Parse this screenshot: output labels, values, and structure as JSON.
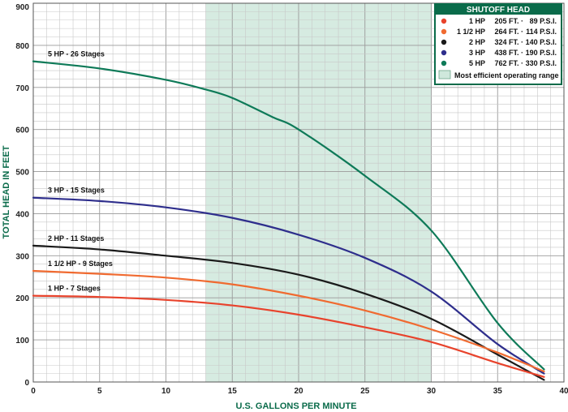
{
  "chart_data": {
    "type": "line",
    "xlabel": "U.S. GALLONS PER MINUTE",
    "ylabel": "TOTAL HEAD IN FEET",
    "xlim": [
      0,
      40
    ],
    "ylim": [
      0,
      900
    ],
    "x_ticks": [
      "0",
      "5",
      "10",
      "15",
      "20",
      "25",
      "30",
      "35",
      "40"
    ],
    "y_ticks": [
      "0",
      "100",
      "200",
      "300",
      "400",
      "500",
      "600",
      "700",
      "800",
      "900"
    ],
    "grid": true,
    "efficient_range": {
      "x_start": 13,
      "x_end": 30,
      "color": "#cfe8dc"
    },
    "legend": {
      "title": "SHUTOFF HEAD",
      "placement": "top-right",
      "header_color": "#0a6b4a",
      "entries": [
        {
          "hp": "1 HP",
          "ft": "205 FT. ·",
          "psi": "89 P.S.I.",
          "color": "#e8432c"
        },
        {
          "hp": "1 1/2 HP",
          "ft": "264 FT. ·",
          "psi": "114 P.S.I.",
          "color": "#f06a30"
        },
        {
          "hp": "2 HP",
          "ft": "324 FT. ·",
          "psi": "140 P.S.I.",
          "color": "#1a1a1a"
        },
        {
          "hp": "3 HP",
          "ft": "438 FT. ·",
          "psi": "190 P.S.I.",
          "color": "#2e2e8c"
        },
        {
          "hp": "5 HP",
          "ft": "762 FT. ·",
          "psi": "330 P.S.I.",
          "color": "#0e7a58"
        }
      ],
      "range_label": "Most efficient operating range"
    },
    "series": [
      {
        "name": "5 HP - 26 Stages",
        "color": "#0e7a58",
        "x": [
          0,
          5,
          10,
          13,
          15,
          18,
          20,
          25,
          30,
          35,
          38.5
        ],
        "y": [
          762,
          745,
          718,
          695,
          675,
          630,
          600,
          490,
          360,
          140,
          30
        ]
      },
      {
        "name": "3 HP - 15 Stages",
        "color": "#2e2e8c",
        "x": [
          0,
          5,
          10,
          15,
          20,
          25,
          30,
          35,
          38.5
        ],
        "y": [
          438,
          430,
          415,
          390,
          350,
          295,
          215,
          90,
          20
        ]
      },
      {
        "name": "2 HP - 11 Stages",
        "color": "#1a1a1a",
        "x": [
          0,
          5,
          10,
          15,
          20,
          25,
          30,
          35,
          38.5
        ],
        "y": [
          324,
          315,
          300,
          283,
          255,
          210,
          150,
          65,
          5
        ]
      },
      {
        "name": "1 1/2 HP - 9 Stages",
        "color": "#f06a30",
        "x": [
          0,
          5,
          10,
          15,
          20,
          25,
          30,
          35,
          38.5
        ],
        "y": [
          264,
          257,
          248,
          232,
          205,
          170,
          125,
          70,
          25
        ]
      },
      {
        "name": "1 HP - 7 Stages",
        "color": "#e8432c",
        "x": [
          0,
          5,
          10,
          15,
          20,
          25,
          30,
          35,
          38.5
        ],
        "y": [
          205,
          202,
          195,
          182,
          160,
          130,
          95,
          45,
          12
        ]
      }
    ],
    "series_label_anchor_x": [
      0.3,
      0.3,
      0.3,
      0.3,
      0.3
    ]
  }
}
